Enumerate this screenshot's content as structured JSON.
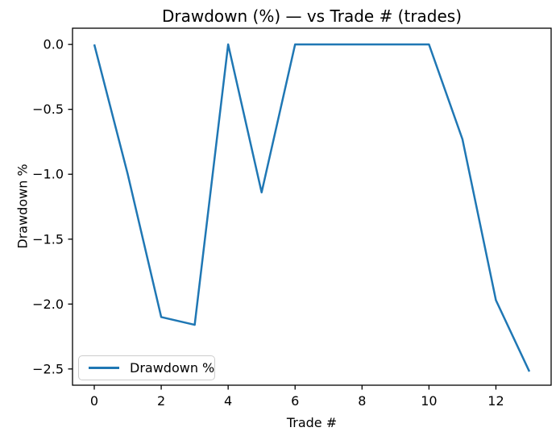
{
  "chart_data": {
    "type": "line",
    "title": "Drawdown (%) — vs Trade # (trades)",
    "xlabel": "Trade #",
    "ylabel": "Drawdown %",
    "grid": false,
    "xlim": [
      -0.65,
      13.65
    ],
    "ylim": [
      -2.625,
      0.125
    ],
    "xticks": {
      "values": [
        0,
        2,
        4,
        6,
        8,
        10,
        12
      ],
      "labels": [
        "0",
        "2",
        "4",
        "6",
        "8",
        "10",
        "12"
      ]
    },
    "yticks": {
      "values": [
        0.0,
        -0.5,
        -1.0,
        -1.5,
        -2.0,
        -2.5
      ],
      "labels": [
        "0.0",
        "−0.5",
        "−1.0",
        "−1.5",
        "−2.0",
        "−2.5"
      ]
    },
    "series": [
      {
        "name": "Drawdown %",
        "color": "#1f77b4",
        "x": [
          0,
          1,
          2,
          3,
          4,
          5,
          6,
          7,
          8,
          9,
          10,
          11,
          12,
          13
        ],
        "y": [
          0.0,
          -1.0,
          -2.1,
          -2.16,
          0.0,
          -1.14,
          0.0,
          0.0,
          0.0,
          0.0,
          0.0,
          -0.73,
          -1.97,
          -2.52
        ]
      }
    ],
    "legend": {
      "position": "lower left",
      "entries": [
        {
          "label": "Drawdown %",
          "color": "#1f77b4"
        }
      ]
    },
    "colors": {
      "line": "#1f77b4",
      "spine": "#000000",
      "text": "#000000",
      "legend_border": "#cccccc",
      "background": "#ffffff"
    }
  }
}
